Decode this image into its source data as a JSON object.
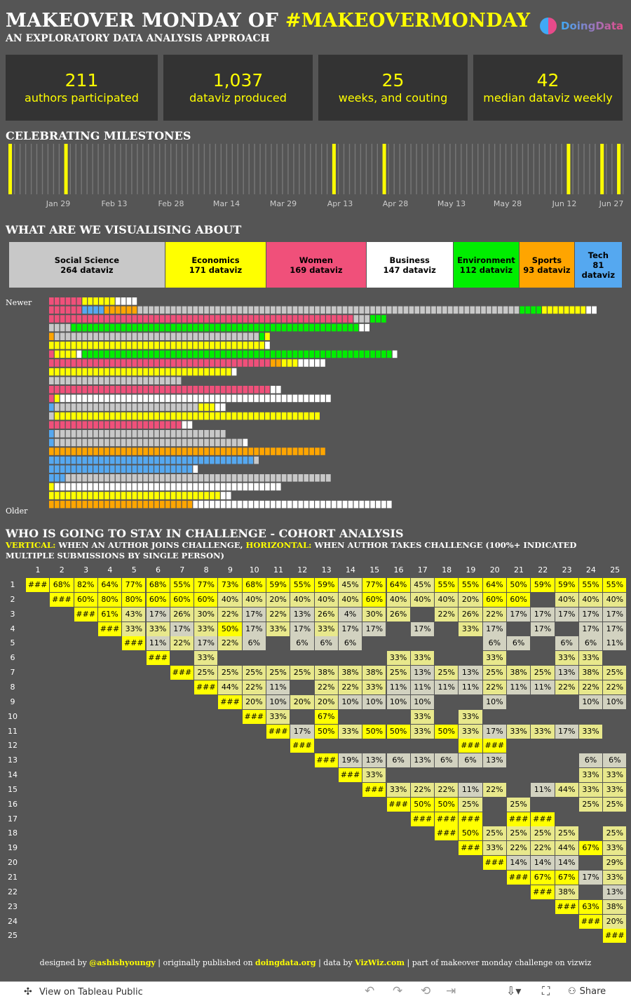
{
  "header": {
    "title_prefix": "MAKEOVER MONDAY OF",
    "title_highlight": "#MAKEOVERMONDAY",
    "subtitle": "AN EXPLORATORY DATA ANALYSIS APPROACH",
    "logo_text": "DoingData"
  },
  "kpis": [
    {
      "value": "211",
      "label": "authors participated"
    },
    {
      "value": "1,037",
      "label": "dataviz produced"
    },
    {
      "value": "25",
      "label": "weeks, and couting"
    },
    {
      "value": "42",
      "label": "median dataviz weekly"
    }
  ],
  "sections": {
    "milestones": "CELEBRATING MILESTONES",
    "visualising": "WHAT ARE WE VISUALISING ABOUT",
    "cohort": "WHO IS GOING TO STAY IN CHALLENGE - COHORT ANALYSIS",
    "cohort_v_label": "VERTICAL:",
    "cohort_v_text": " WHEN AN AUTHOR JOINS CHALLENGE, ",
    "cohort_h_label": "HORIZONTAL:",
    "cohort_h_text": "  WHEN AUTHOR TAKES CHALLENGE (100%+ INDICATED MULTIPLE SUBMISSIONS BY SINGLE PERSON)",
    "newer": "Newer",
    "older": "Older"
  },
  "colors": {
    "social_science": "#c8c8c8",
    "economics": "#ffff00",
    "women": "#f0507a",
    "business": "#ffffff",
    "environment": "#00ee00",
    "sports": "#ffa500",
    "tech": "#55a8f0",
    "cell_hi": "#ffff00",
    "cell_mid": "#e8e88c",
    "cell_lo": "#d2d2c0"
  },
  "milestones": {
    "axis_labels": [
      "Jan 29",
      "Feb 13",
      "Feb 28",
      "Mar 14",
      "Mar 29",
      "Apr 13",
      "Apr 28",
      "May 13",
      "May 28",
      "Jun 12",
      "Jun 27"
    ],
    "ticks": 111,
    "highlighted_ticks": [
      1,
      20,
      105,
      122,
      0
    ],
    "highlight_positions": [
      0,
      18,
      106,
      124,
      183,
      198,
      206
    ]
  },
  "categories": [
    {
      "key": "social_science",
      "name": "Social Science",
      "count": "264 dataviz",
      "value": 264
    },
    {
      "key": "economics",
      "name": "Economics",
      "count": "171 dataviz",
      "value": 171
    },
    {
      "key": "women",
      "name": "Women",
      "count": "169 dataviz",
      "value": 169
    },
    {
      "key": "business",
      "name": "Business",
      "count": "147 dataviz",
      "value": 147
    },
    {
      "key": "environment",
      "name": "Environment",
      "count": "112 dataviz",
      "value": 112
    },
    {
      "key": "sports",
      "name": "Sports",
      "count": "93 dataviz",
      "value": 93
    },
    {
      "key": "tech",
      "name": "Tech",
      "count": "81 dataviz",
      "value": 81
    }
  ],
  "weekly_rows": [
    [
      [
        "W",
        6
      ],
      [
        "E",
        6
      ],
      [
        "B",
        4
      ]
    ],
    [
      [
        "W",
        6
      ],
      [
        "T",
        4
      ],
      [
        "S",
        6
      ],
      [
        "G",
        69
      ],
      [
        "V",
        4
      ],
      [
        "E",
        8
      ],
      [
        "B",
        2
      ]
    ],
    [
      [
        "W",
        55
      ],
      [
        "G",
        3
      ],
      [
        "V",
        3
      ]
    ],
    [
      [
        "G",
        4
      ],
      [
        "V",
        52
      ],
      [
        "B",
        2
      ]
    ],
    [
      [
        "S",
        1
      ],
      [
        "G",
        37
      ],
      [
        "V",
        1
      ],
      [
        "E",
        1
      ]
    ],
    [
      [
        "E",
        1
      ],
      [
        "E",
        38
      ],
      [
        "B",
        1
      ]
    ],
    [
      [
        "W",
        1
      ],
      [
        "E",
        4
      ],
      [
        "B",
        1
      ],
      [
        "V",
        56
      ],
      [
        "B",
        1
      ]
    ],
    [
      [
        "W",
        40
      ],
      [
        "S",
        2
      ],
      [
        "E",
        3
      ],
      [
        "B",
        5
      ]
    ],
    [
      [
        "E",
        33
      ],
      [
        "B",
        1
      ]
    ],
    [
      [
        "G",
        24
      ]
    ],
    [
      [
        "W",
        40
      ],
      [
        "B",
        2
      ]
    ],
    [
      [
        "W",
        1
      ],
      [
        "E",
        1
      ],
      [
        "B",
        49
      ]
    ],
    [
      [
        "T",
        1
      ],
      [
        "G",
        26
      ],
      [
        "E",
        3
      ],
      [
        "B",
        2
      ]
    ],
    [
      [
        "G",
        1
      ],
      [
        "E",
        48
      ]
    ],
    [
      [
        "W",
        24
      ],
      [
        "B",
        2
      ]
    ],
    [
      [
        "T",
        1
      ],
      [
        "G",
        31
      ]
    ],
    [
      [
        "T",
        1
      ],
      [
        "G",
        34
      ],
      [
        "B",
        1
      ]
    ],
    [
      [
        "S",
        50
      ]
    ],
    [
      [
        "T",
        1
      ],
      [
        "T",
        36
      ],
      [
        "G",
        1
      ]
    ],
    [
      [
        "T",
        26
      ],
      [
        "B",
        1
      ]
    ],
    [
      [
        "T",
        3
      ],
      [
        "G",
        48
      ]
    ],
    [
      [
        "E",
        1
      ],
      [
        "B",
        41
      ]
    ],
    [
      [
        "E",
        31
      ],
      [
        "B",
        2
      ]
    ],
    [
      [
        "S",
        26
      ],
      [
        "B",
        36
      ]
    ]
  ],
  "cohort": {
    "weeks": 25,
    "rows": [
      [
        "###",
        "68%",
        "82%",
        "64%",
        "77%",
        "68%",
        "55%",
        "77%",
        "73%",
        "68%",
        "59%",
        "55%",
        "59%",
        "45%",
        "77%",
        "64%",
        "45%",
        "55%",
        "55%",
        "64%",
        "50%",
        "59%",
        "59%",
        "55%",
        "55%"
      ],
      [
        "###",
        "60%",
        "80%",
        "80%",
        "60%",
        "60%",
        "60%",
        "40%",
        "40%",
        "20%",
        "40%",
        "40%",
        "40%",
        "60%",
        "40%",
        "40%",
        "40%",
        "20%",
        "60%",
        "60%",
        "",
        "40%",
        "40%",
        "40%"
      ],
      [
        "###",
        "61%",
        "43%",
        "17%",
        "26%",
        "30%",
        "22%",
        "17%",
        "22%",
        "13%",
        "26%",
        "4%",
        "30%",
        "26%",
        "",
        "22%",
        "26%",
        "22%",
        "17%",
        "17%",
        "17%",
        "17%",
        "17%"
      ],
      [
        "###",
        "33%",
        "33%",
        "17%",
        "33%",
        "50%",
        "17%",
        "33%",
        "17%",
        "33%",
        "17%",
        "17%",
        "",
        "17%",
        "",
        "33%",
        "17%",
        "",
        "17%",
        "",
        "17%",
        "17%"
      ],
      [
        "###",
        "11%",
        "22%",
        "17%",
        "22%",
        "6%",
        "",
        "6%",
        "6%",
        "6%",
        "",
        "",
        "",
        "",
        "",
        "6%",
        "6%",
        "",
        "6%",
        "6%",
        "11%"
      ],
      [
        "###",
        "",
        "33%",
        "",
        "",
        "",
        "",
        "",
        "",
        "",
        "33%",
        "33%",
        "",
        "",
        "33%",
        "",
        "",
        "33%",
        "33%"
      ],
      [
        "###",
        "25%",
        "25%",
        "25%",
        "25%",
        "25%",
        "38%",
        "38%",
        "38%",
        "25%",
        "13%",
        "25%",
        "13%",
        "25%",
        "38%",
        "25%",
        "13%",
        "38%",
        "25%"
      ],
      [
        "###",
        "44%",
        "22%",
        "11%",
        "",
        "22%",
        "22%",
        "33%",
        "11%",
        "11%",
        "11%",
        "11%",
        "22%",
        "11%",
        "11%",
        "22%",
        "22%",
        "22%"
      ],
      [
        "###",
        "20%",
        "10%",
        "20%",
        "20%",
        "10%",
        "10%",
        "10%",
        "10%",
        "",
        "",
        "10%",
        "",
        "",
        "",
        "10%",
        "10%"
      ],
      [
        "###",
        "33%",
        "",
        "67%",
        "",
        "",
        "",
        "33%",
        "",
        "33%",
        "",
        "",
        "",
        "",
        ""
      ],
      [
        "###",
        "17%",
        "50%",
        "33%",
        "50%",
        "50%",
        "33%",
        "50%",
        "33%",
        "17%",
        "33%",
        "33%",
        "17%",
        "33%",
        ""
      ],
      [
        "###",
        "",
        "",
        "",
        "",
        "",
        "",
        "###",
        "###",
        "",
        "",
        "",
        "",
        ""
      ],
      [
        "###",
        "19%",
        "13%",
        "6%",
        "13%",
        "6%",
        "6%",
        "13%",
        "",
        "",
        "",
        "6%",
        "6%"
      ],
      [
        "###",
        "33%",
        "",
        "",
        "",
        "",
        "",
        "",
        "",
        "",
        "33%",
        "33%"
      ],
      [
        "###",
        "33%",
        "22%",
        "22%",
        "11%",
        "22%",
        "",
        "11%",
        "44%",
        "33%",
        "33%"
      ],
      [
        "###",
        "50%",
        "50%",
        "25%",
        "",
        "25%",
        "",
        "",
        "25%",
        "25%"
      ],
      [
        "###",
        "###",
        "###",
        "",
        "###",
        "###",
        "",
        "",
        ""
      ],
      [
        "###",
        "50%",
        "25%",
        "25%",
        "25%",
        "25%",
        "",
        "25%"
      ],
      [
        "###",
        "33%",
        "22%",
        "22%",
        "44%",
        "67%",
        "33%"
      ],
      [
        "###",
        "14%",
        "14%",
        "14%",
        "",
        "29%"
      ],
      [
        "###",
        "67%",
        "67%",
        "17%",
        "33%"
      ],
      [
        "###",
        "38%",
        "",
        "13%"
      ],
      [
        "###",
        "63%",
        "38%"
      ],
      [
        "###",
        "20%"
      ],
      [
        "###"
      ]
    ]
  },
  "footer": {
    "p1": "designed by ",
    "author": "@ashishyoungy",
    "p2": " | originally published on ",
    "site": "doingdata.org",
    "p3": " | data by ",
    "source": "VizWiz.com",
    "p4": " | part of makeover monday challenge on vizwiz"
  },
  "toolbar": {
    "view_label": "View on Tableau Public",
    "share_label": "Share"
  },
  "chart_data": {
    "type": "bar",
    "categories": [
      "Social Science",
      "Economics",
      "Women",
      "Business",
      "Environment",
      "Sports",
      "Tech"
    ],
    "values": [
      264,
      171,
      169,
      147,
      112,
      93,
      81
    ],
    "title": "WHAT ARE WE VISUALISING ABOUT"
  }
}
